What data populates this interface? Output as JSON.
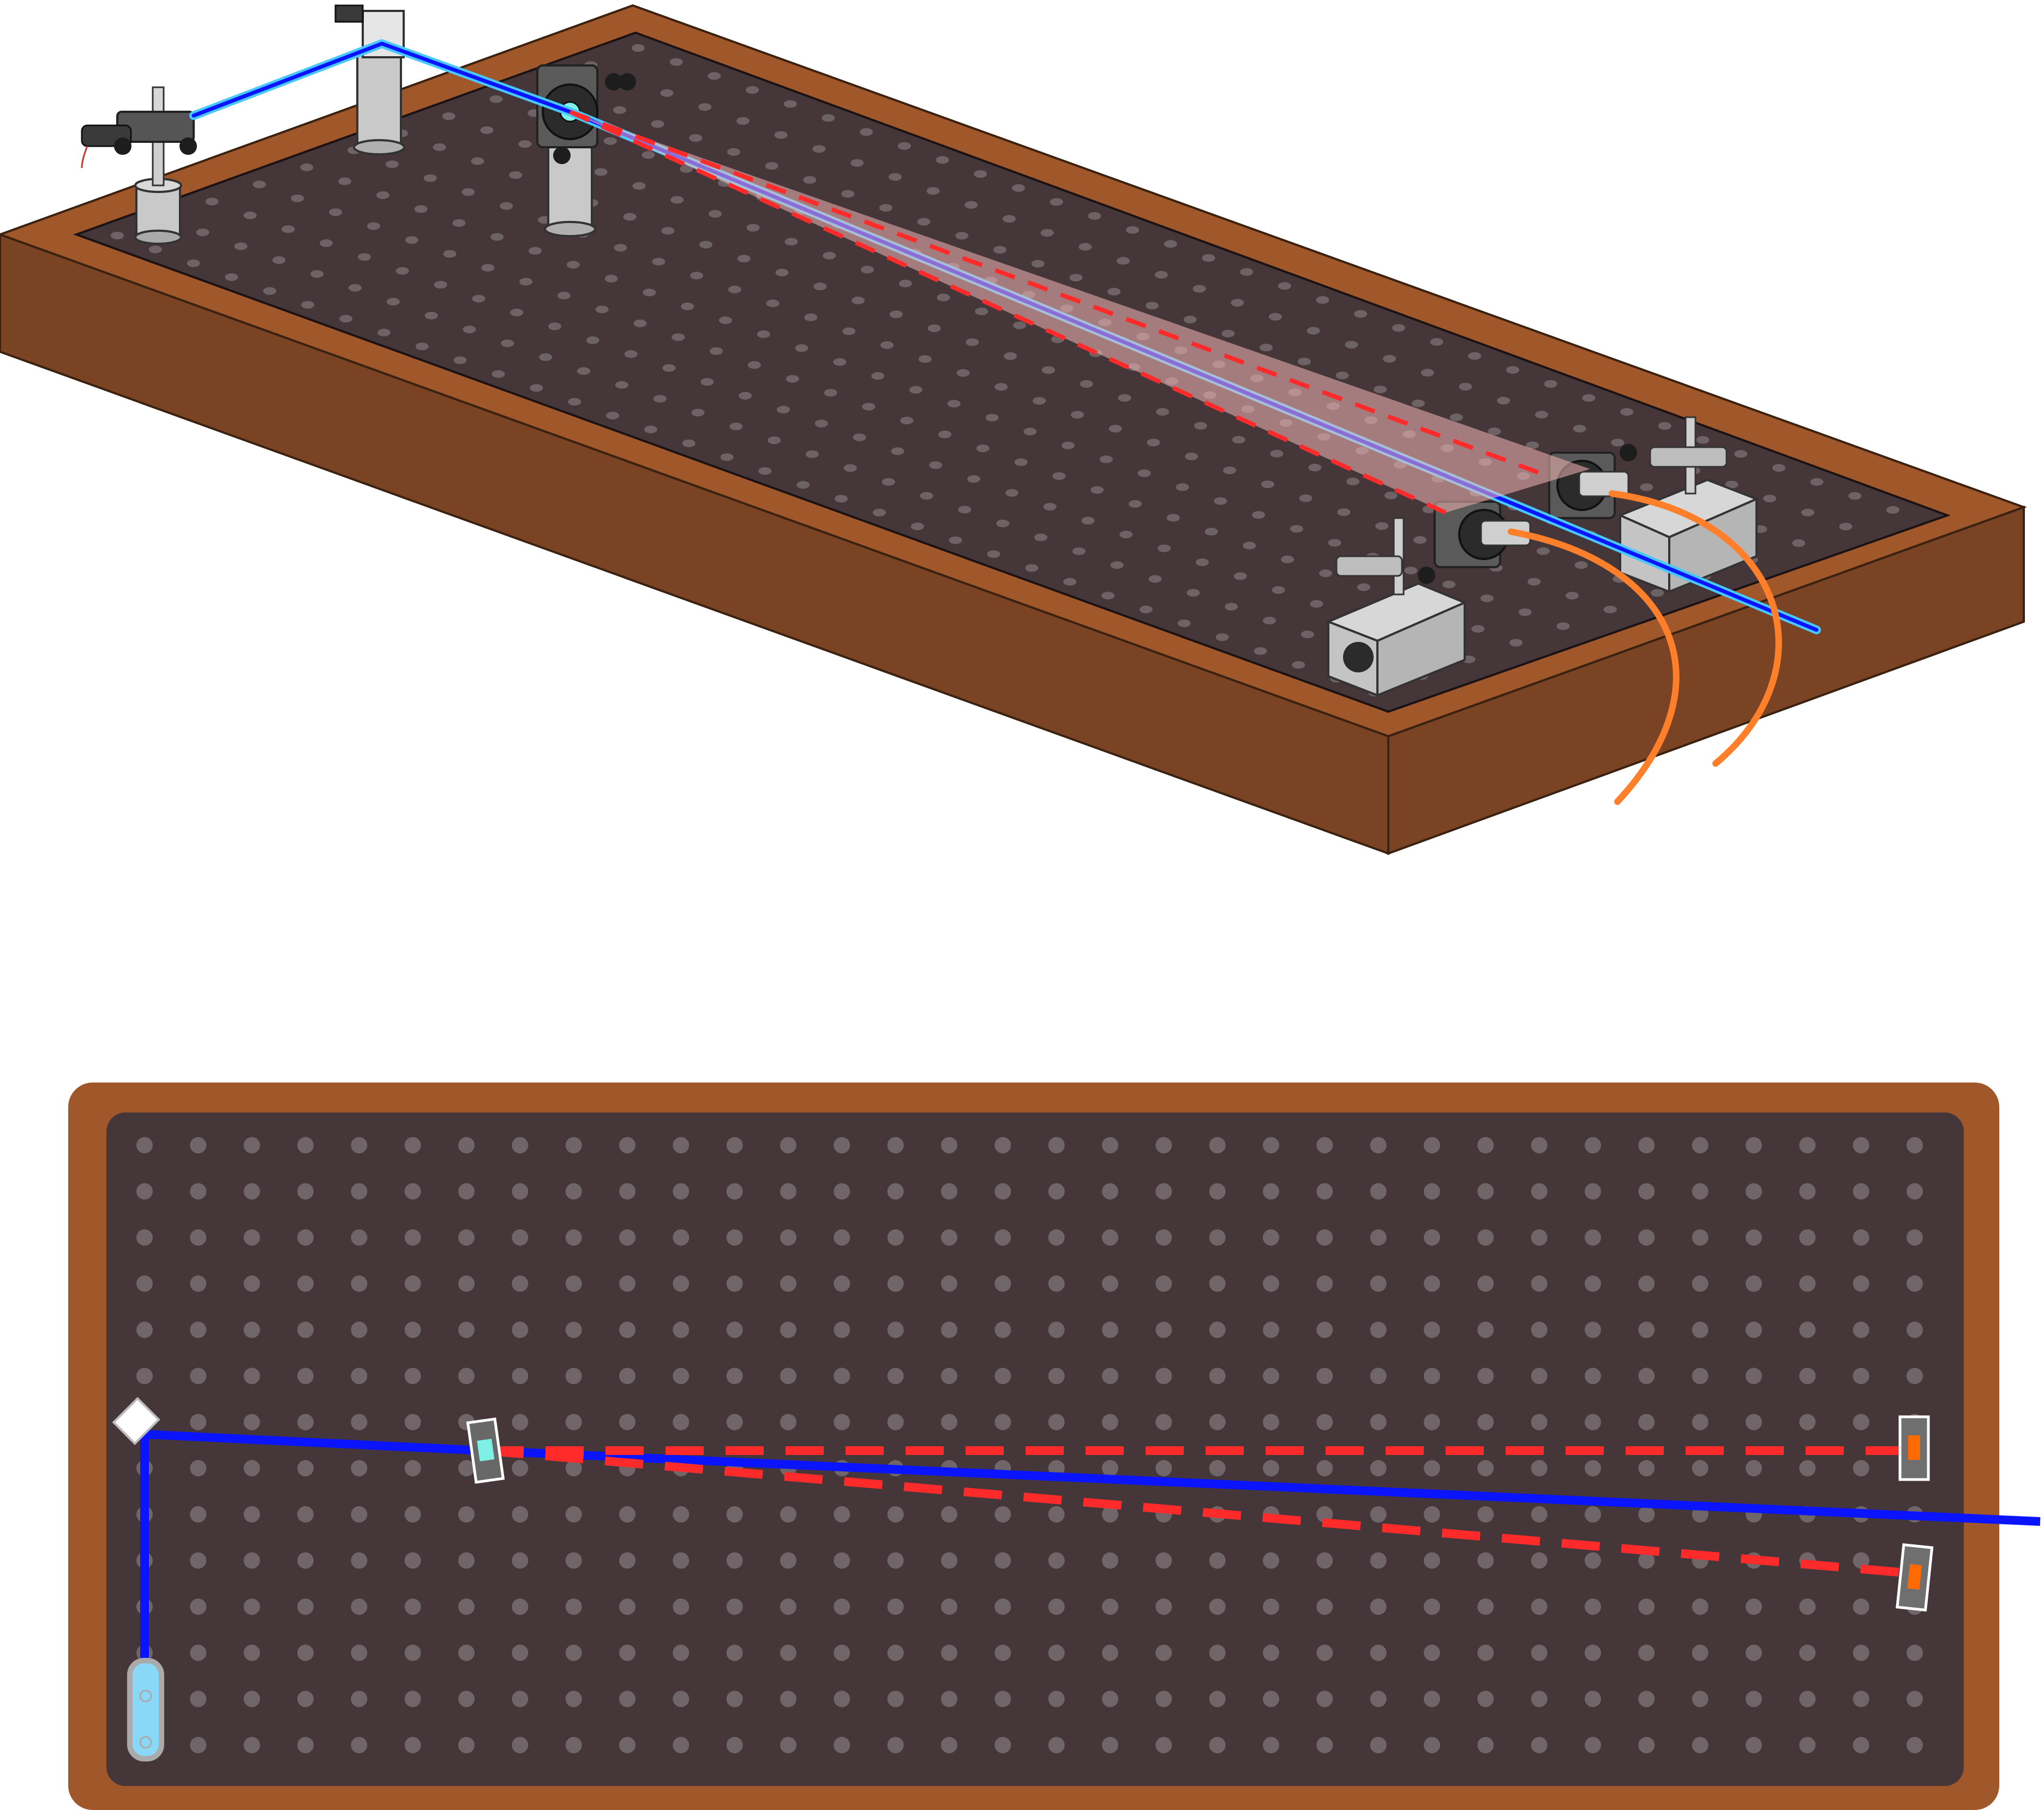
{
  "colors": {
    "table_wood_top": "#a0572a",
    "table_wood_side": "#7a4424",
    "breadboard": "#45363a",
    "breadboard_hole": "#70666a",
    "pump_beam": "#0a14ff",
    "pump_beam_glow": "#49c8ff",
    "downconverted_beam": "#ff2a2a",
    "downconverted_glow": "#f4b6b6",
    "fiber": "#ff7f2a",
    "mount_metal": "#bdbdbd",
    "mount_dark": "#2b2b2b",
    "crystal": "#7ff0e6"
  },
  "diagram": {
    "views": [
      "perspective-3d",
      "top-down"
    ],
    "components": {
      "laser": "laser-source",
      "mirror": "steering-mirror",
      "crystal": "nonlinear-crystal",
      "couplers": [
        "fiber-coupler-upper",
        "fiber-coupler-lower"
      ],
      "fibers": [
        "optical-fiber",
        "optical-fiber"
      ],
      "stages": [
        "translation-stage",
        "translation-stage"
      ]
    },
    "beams": {
      "pump": "solid",
      "downconverted": "dashed"
    },
    "hole_grid": {
      "columns": 34,
      "rows": 14
    }
  }
}
